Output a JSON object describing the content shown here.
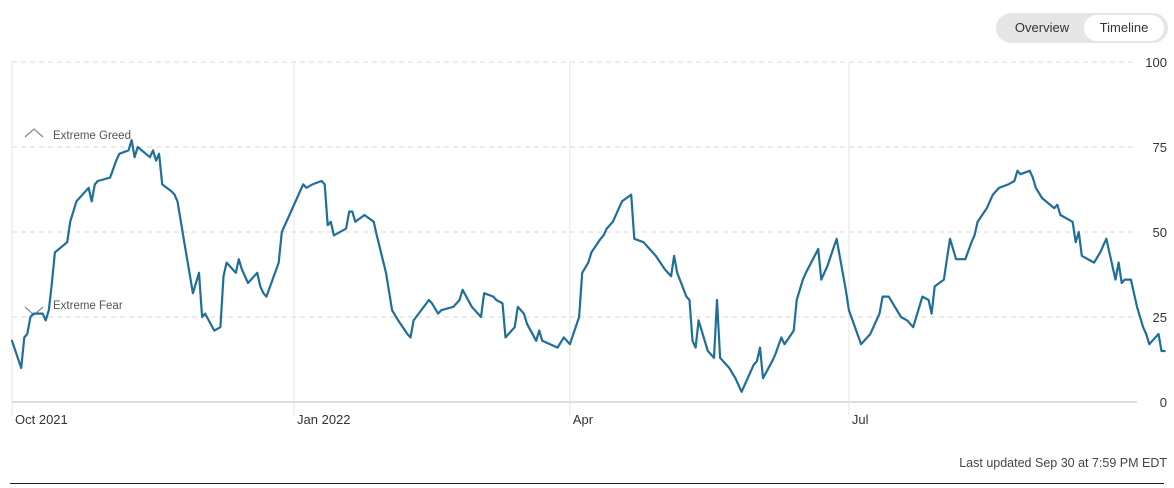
{
  "controls": {
    "overview_label": "Overview",
    "timeline_label": "Timeline",
    "selected": "Timeline"
  },
  "footer": {
    "last_updated": "Last updated Sep 30 at 7:59 PM EDT"
  },
  "colors": {
    "line": "#1f6f9a",
    "grid": "#d9d9d9",
    "axis": "#bbbbbb",
    "text": "#333333"
  },
  "chart_data": {
    "type": "line",
    "title": "",
    "xlabel": "",
    "ylabel": "",
    "ylim": [
      0,
      100
    ],
    "yticks": [
      0,
      25,
      50,
      75,
      100
    ],
    "y_axis_side": "right",
    "grid": true,
    "x_tick_labels": [
      {
        "x": "2021-10-01",
        "label": "Oct 2021"
      },
      {
        "x": "2022-01-01",
        "label": "Jan 2022"
      },
      {
        "x": "2022-04-01",
        "label": "Apr"
      },
      {
        "x": "2022-07-01",
        "label": "Jul"
      }
    ],
    "xlim": [
      "2021-10-01",
      "2022-10-03"
    ],
    "annotations": [
      {
        "label": "Extreme Greed",
        "y": 75,
        "icon": "chevron-up-icon"
      },
      {
        "label": "Extreme Fear",
        "y": 25,
        "icon": "chevron-down-icon"
      }
    ],
    "series": [
      {
        "values": [
          [
            "2021-10-01",
            18
          ],
          [
            "2021-10-04",
            10
          ],
          [
            "2021-10-05",
            19
          ],
          [
            "2021-10-06",
            20
          ],
          [
            "2021-10-07",
            25
          ],
          [
            "2021-10-08",
            26
          ],
          [
            "2021-10-11",
            26
          ],
          [
            "2021-10-12",
            24
          ],
          [
            "2021-10-13",
            27
          ],
          [
            "2021-10-14",
            35
          ],
          [
            "2021-10-15",
            44
          ],
          [
            "2021-10-19",
            47
          ],
          [
            "2021-10-20",
            53
          ],
          [
            "2021-10-22",
            59
          ],
          [
            "2021-10-25",
            62
          ],
          [
            "2021-10-26",
            63
          ],
          [
            "2021-10-27",
            59
          ],
          [
            "2021-10-28",
            64
          ],
          [
            "2021-10-29",
            65
          ],
          [
            "2021-11-02",
            66
          ],
          [
            "2021-11-04",
            71
          ],
          [
            "2021-11-05",
            73
          ],
          [
            "2021-11-08",
            74
          ],
          [
            "2021-11-09",
            77
          ],
          [
            "2021-11-10",
            72
          ],
          [
            "2021-11-11",
            75
          ],
          [
            "2021-11-15",
            72
          ],
          [
            "2021-11-16",
            74
          ],
          [
            "2021-11-17",
            71
          ],
          [
            "2021-11-18",
            73
          ],
          [
            "2021-11-19",
            64
          ],
          [
            "2021-11-22",
            62
          ],
          [
            "2021-11-23",
            61
          ],
          [
            "2021-11-24",
            59
          ],
          [
            "2021-11-26",
            48
          ],
          [
            "2021-11-29",
            32
          ],
          [
            "2021-12-01",
            38
          ],
          [
            "2021-12-02",
            25
          ],
          [
            "2021-12-03",
            26
          ],
          [
            "2021-12-06",
            21
          ],
          [
            "2021-12-08",
            22
          ],
          [
            "2021-12-09",
            37
          ],
          [
            "2021-12-10",
            41
          ],
          [
            "2021-12-13",
            38
          ],
          [
            "2021-12-14",
            42
          ],
          [
            "2021-12-15",
            39
          ],
          [
            "2021-12-17",
            35
          ],
          [
            "2021-12-20",
            38
          ],
          [
            "2021-12-21",
            34
          ],
          [
            "2021-12-22",
            32
          ],
          [
            "2021-12-23",
            31
          ],
          [
            "2021-12-27",
            41
          ],
          [
            "2021-12-28",
            50
          ],
          [
            "2021-12-31",
            56
          ],
          [
            "2022-01-03",
            62
          ],
          [
            "2022-01-04",
            64
          ],
          [
            "2022-01-05",
            63
          ],
          [
            "2022-01-07",
            64
          ],
          [
            "2022-01-10",
            65
          ],
          [
            "2022-01-11",
            64
          ],
          [
            "2022-01-12",
            52
          ],
          [
            "2022-01-13",
            53
          ],
          [
            "2022-01-14",
            49
          ],
          [
            "2022-01-18",
            51
          ],
          [
            "2022-01-19",
            56
          ],
          [
            "2022-01-20",
            56
          ],
          [
            "2022-01-21",
            53
          ],
          [
            "2022-01-24",
            55
          ],
          [
            "2022-01-27",
            53
          ],
          [
            "2022-01-28",
            49
          ],
          [
            "2022-01-31",
            38
          ],
          [
            "2022-02-02",
            27
          ],
          [
            "2022-02-04",
            24
          ],
          [
            "2022-02-07",
            20
          ],
          [
            "2022-02-08",
            19
          ],
          [
            "2022-02-09",
            24
          ],
          [
            "2022-02-14",
            30
          ],
          [
            "2022-02-15",
            29
          ],
          [
            "2022-02-17",
            26
          ],
          [
            "2022-02-18",
            27
          ],
          [
            "2022-02-22",
            28
          ],
          [
            "2022-02-24",
            30
          ],
          [
            "2022-02-25",
            33
          ],
          [
            "2022-02-28",
            28
          ],
          [
            "2022-03-03",
            25
          ],
          [
            "2022-03-04",
            32
          ],
          [
            "2022-03-07",
            31
          ],
          [
            "2022-03-08",
            30
          ],
          [
            "2022-03-10",
            29
          ],
          [
            "2022-03-11",
            19
          ],
          [
            "2022-03-14",
            22
          ],
          [
            "2022-03-15",
            28
          ],
          [
            "2022-03-17",
            26
          ],
          [
            "2022-03-18",
            23
          ],
          [
            "2022-03-21",
            18
          ],
          [
            "2022-03-22",
            21
          ],
          [
            "2022-03-23",
            18
          ],
          [
            "2022-03-28",
            16
          ],
          [
            "2022-03-30",
            19
          ],
          [
            "2022-04-01",
            17
          ],
          [
            "2022-04-04",
            25
          ],
          [
            "2022-04-05",
            38
          ],
          [
            "2022-04-07",
            41
          ],
          [
            "2022-04-08",
            44
          ],
          [
            "2022-04-11",
            48
          ],
          [
            "2022-04-12",
            49
          ],
          [
            "2022-04-13",
            51
          ],
          [
            "2022-04-15",
            53
          ],
          [
            "2022-04-18",
            59
          ],
          [
            "2022-04-21",
            61
          ],
          [
            "2022-04-22",
            48
          ],
          [
            "2022-04-25",
            47
          ],
          [
            "2022-04-27",
            45
          ],
          [
            "2022-04-29",
            43
          ],
          [
            "2022-05-02",
            39
          ],
          [
            "2022-05-04",
            37
          ],
          [
            "2022-05-05",
            43
          ],
          [
            "2022-05-06",
            38
          ],
          [
            "2022-05-09",
            31
          ],
          [
            "2022-05-10",
            30
          ],
          [
            "2022-05-11",
            18
          ],
          [
            "2022-05-12",
            16
          ],
          [
            "2022-05-13",
            24
          ],
          [
            "2022-05-16",
            15
          ],
          [
            "2022-05-18",
            13
          ],
          [
            "2022-05-19",
            30
          ],
          [
            "2022-05-20",
            13
          ],
          [
            "2022-05-23",
            10
          ],
          [
            "2022-05-25",
            7
          ],
          [
            "2022-05-26",
            5
          ],
          [
            "2022-05-27",
            3
          ],
          [
            "2022-05-31",
            11
          ],
          [
            "2022-06-01",
            12
          ],
          [
            "2022-06-02",
            16
          ],
          [
            "2022-06-03",
            7
          ],
          [
            "2022-06-06",
            12
          ],
          [
            "2022-06-07",
            14
          ],
          [
            "2022-06-09",
            19
          ],
          [
            "2022-06-10",
            17
          ],
          [
            "2022-06-13",
            21
          ],
          [
            "2022-06-14",
            30
          ],
          [
            "2022-06-16",
            36
          ],
          [
            "2022-06-17",
            38
          ],
          [
            "2022-06-21",
            45
          ],
          [
            "2022-06-22",
            36
          ],
          [
            "2022-06-24",
            40
          ],
          [
            "2022-06-27",
            48
          ],
          [
            "2022-06-30",
            33
          ],
          [
            "2022-07-01",
            27
          ],
          [
            "2022-07-05",
            17
          ],
          [
            "2022-07-08",
            20
          ],
          [
            "2022-07-11",
            26
          ],
          [
            "2022-07-12",
            31
          ],
          [
            "2022-07-14",
            31
          ],
          [
            "2022-07-18",
            25
          ],
          [
            "2022-07-20",
            24
          ],
          [
            "2022-07-22",
            22
          ],
          [
            "2022-07-25",
            31
          ],
          [
            "2022-07-27",
            30
          ],
          [
            "2022-07-28",
            26
          ],
          [
            "2022-07-29",
            34
          ],
          [
            "2022-08-01",
            36
          ],
          [
            "2022-08-02",
            42
          ],
          [
            "2022-08-03",
            48
          ],
          [
            "2022-08-05",
            42
          ],
          [
            "2022-08-08",
            42
          ],
          [
            "2022-08-10",
            47
          ],
          [
            "2022-08-11",
            49
          ],
          [
            "2022-08-12",
            53
          ],
          [
            "2022-08-15",
            57
          ],
          [
            "2022-08-17",
            61
          ],
          [
            "2022-08-19",
            63
          ],
          [
            "2022-08-22",
            64
          ],
          [
            "2022-08-24",
            65
          ],
          [
            "2022-08-25",
            68
          ],
          [
            "2022-08-26",
            67
          ],
          [
            "2022-08-29",
            68
          ],
          [
            "2022-08-30",
            66
          ],
          [
            "2022-08-31",
            63
          ],
          [
            "2022-09-02",
            60
          ],
          [
            "2022-09-06",
            57
          ],
          [
            "2022-09-07",
            58
          ],
          [
            "2022-09-08",
            55
          ],
          [
            "2022-09-12",
            53
          ],
          [
            "2022-09-13",
            47
          ],
          [
            "2022-09-14",
            50
          ],
          [
            "2022-09-15",
            43
          ],
          [
            "2022-09-19",
            41
          ],
          [
            "2022-09-21",
            44
          ],
          [
            "2022-09-23",
            48
          ],
          [
            "2022-09-26",
            36
          ],
          [
            "2022-09-27",
            41
          ],
          [
            "2022-09-28",
            35
          ],
          [
            "2022-09-29",
            36
          ],
          [
            "2022-10-01",
            36
          ],
          [
            "2022-10-03",
            28
          ],
          [
            "2022-10-05",
            22
          ],
          [
            "2022-10-06",
            20
          ],
          [
            "2022-10-07",
            17
          ],
          [
            "2022-10-10",
            20
          ],
          [
            "2022-10-11",
            15
          ],
          [
            "2022-10-12",
            15
          ]
        ]
      }
    ]
  }
}
